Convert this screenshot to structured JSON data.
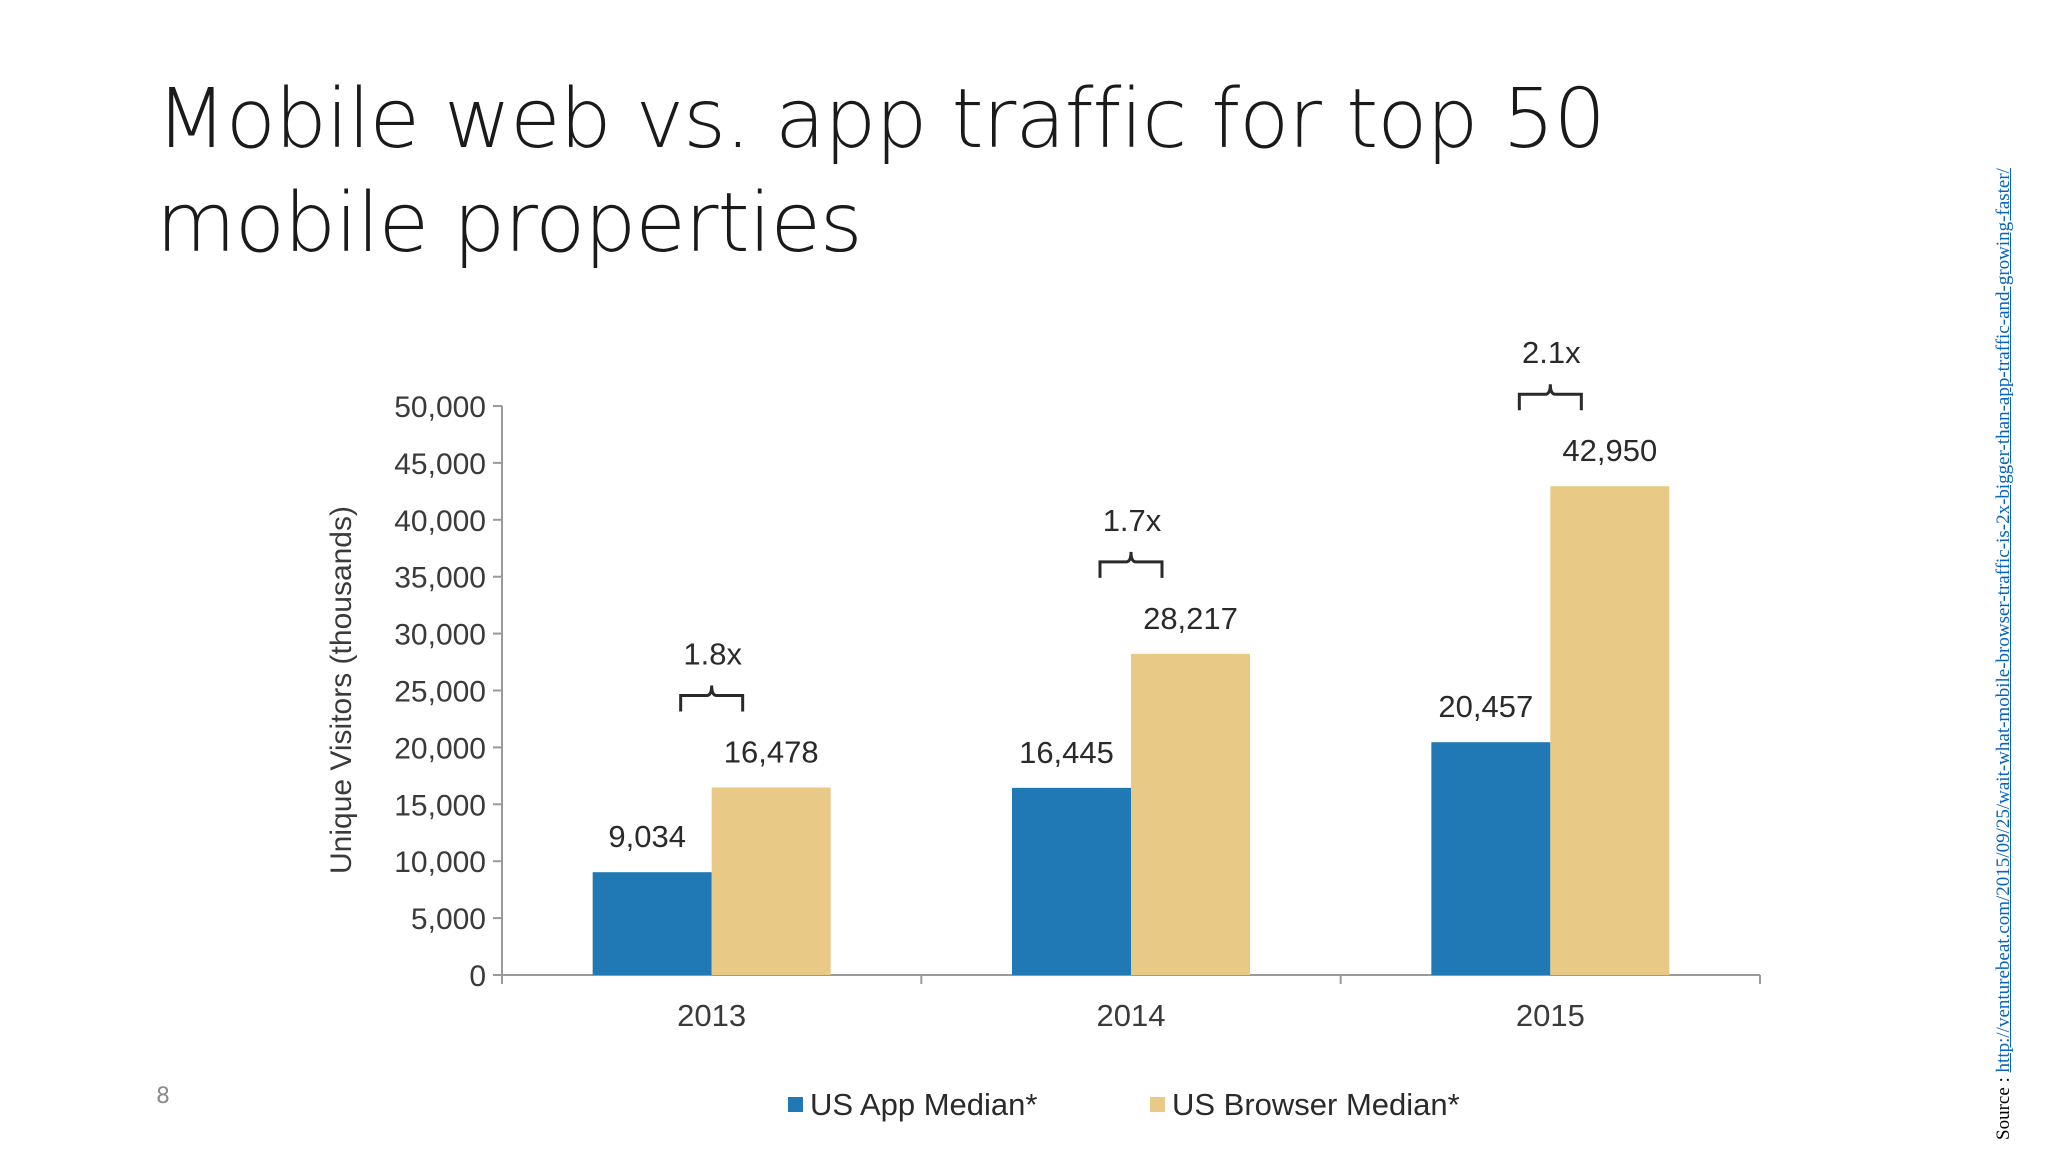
{
  "slide": {
    "title": "Mobile web vs. app traffic for top 50 mobile properties",
    "page_number": "8",
    "source_label": "Source :",
    "source_url": "http://venturebeat.com/2015/09/25/wait-what-mobile-browser-traffic-is-2x-bigger-than-app-traffic-and-growing-faster/"
  },
  "chart_data": {
    "type": "bar",
    "categories": [
      "2013",
      "2014",
      "2015"
    ],
    "series": [
      {
        "name": "US App Median*",
        "color": "#2079b4",
        "values": [
          9034,
          16445,
          20457
        ],
        "labels": [
          "9,034",
          "16,445",
          "20,457"
        ]
      },
      {
        "name": "US Browser Median*",
        "color": "#e8c985",
        "values": [
          16478,
          28217,
          42950
        ],
        "labels": [
          "16,478",
          "28,217",
          "42,950"
        ]
      }
    ],
    "ylabel": "Unique Visitors (thousands)",
    "xlabel": "",
    "ylim": [
      0,
      50000
    ],
    "yticks": [
      0,
      5000,
      10000,
      15000,
      20000,
      25000,
      30000,
      35000,
      40000,
      45000,
      50000
    ],
    "ytick_labels": [
      "0",
      "5,000",
      "10,000",
      "15,000",
      "20,000",
      "25,000",
      "30,000",
      "35,000",
      "40,000",
      "45,000",
      "50,000"
    ],
    "annotations": [
      "1.8x",
      "1.7x",
      "2.1x"
    ],
    "legend_position": "bottom",
    "grid": false
  }
}
